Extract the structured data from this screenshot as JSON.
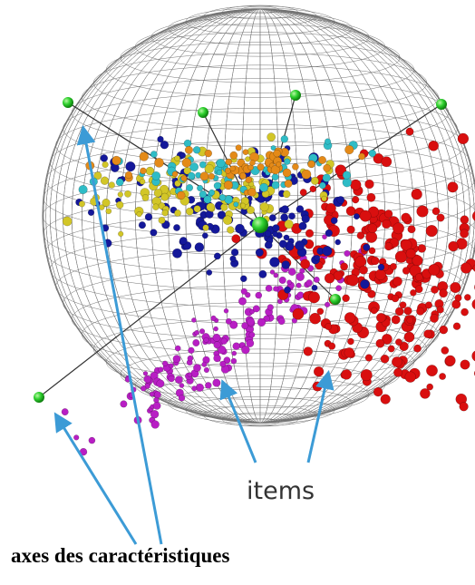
{
  "annotations": {
    "items": "items",
    "axes": "axes des caractéristiques"
  }
}
